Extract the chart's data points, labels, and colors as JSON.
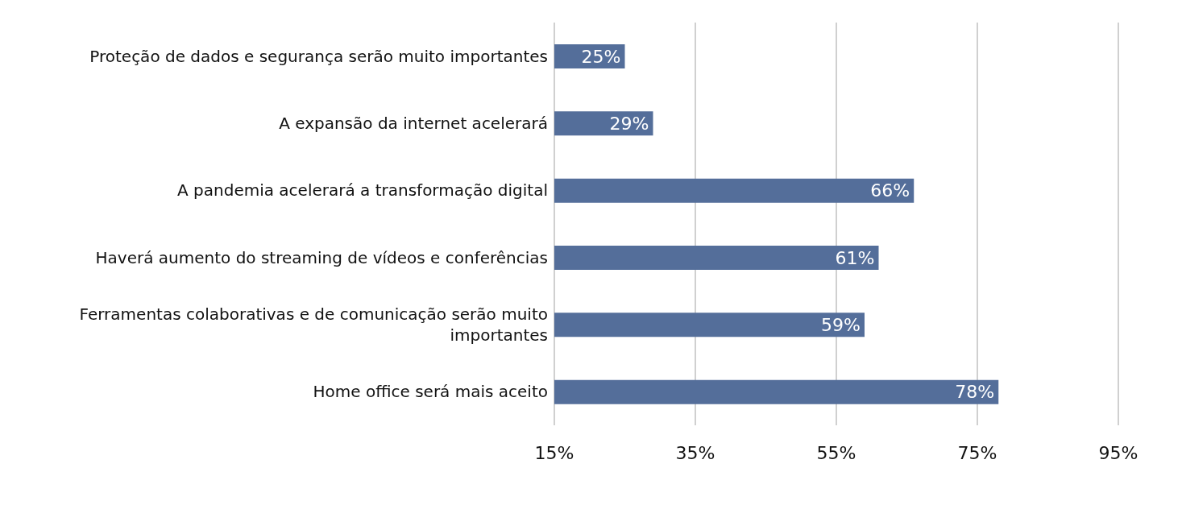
{
  "chart_data": {
    "type": "bar",
    "orientation": "horizontal",
    "categories": [
      "Proteção de dados e segurança serão muito importantes",
      "A expansão da internet acelerará",
      "A pandemia acelerará a transformação digital",
      "Haverá aumento do streaming de vídeos e conferências",
      "Ferramentas colaborativas e de comunicação serão muito importantes",
      "Home office será mais aceito"
    ],
    "values": [
      25,
      29,
      66,
      61,
      59,
      78
    ],
    "value_labels": [
      "25%",
      "29%",
      "66%",
      "61%",
      "59%",
      "78%"
    ],
    "color": "#546e9a",
    "xlim": [
      15,
      95
    ],
    "xticks": [
      {
        "value": 15,
        "label": "15%"
      },
      {
        "value": 35,
        "label": "35%"
      },
      {
        "value": 55,
        "label": "55%"
      },
      {
        "value": 75,
        "label": "75%"
      },
      {
        "value": 95,
        "label": "95%"
      }
    ],
    "grid": "x"
  }
}
